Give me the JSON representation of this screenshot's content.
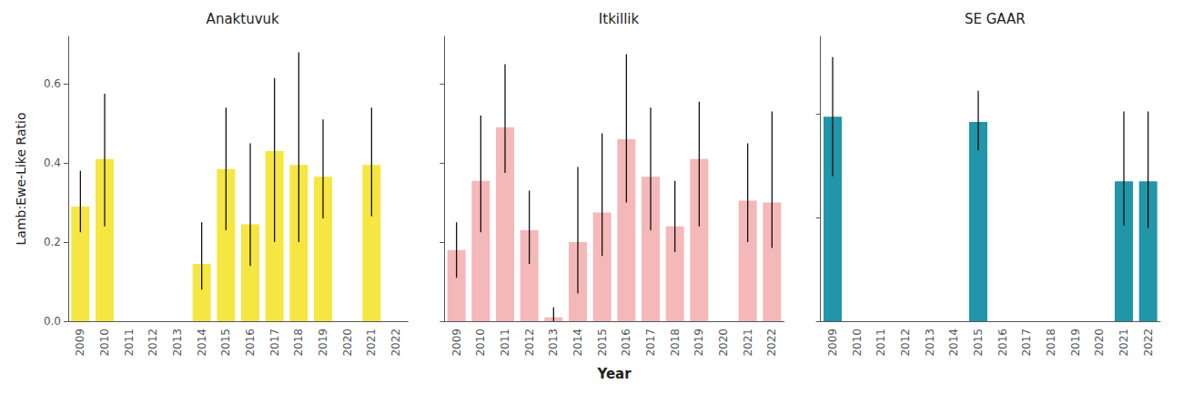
{
  "chart_data": [
    {
      "type": "bar",
      "title": "Anaktuvuk",
      "color": "#F5E642",
      "ylabel": "Lamb:Ewe-Like Ratio",
      "categories": [
        "2009",
        "2010",
        "2011",
        "2012",
        "2013",
        "2014",
        "2015",
        "2016",
        "2017",
        "2018",
        "2019",
        "2020",
        "2021",
        "2022"
      ],
      "values": [
        0.29,
        0.41,
        null,
        null,
        null,
        0.145,
        0.385,
        0.245,
        0.43,
        0.395,
        0.365,
        null,
        0.395,
        null
      ],
      "err_low": [
        0.065,
        0.17,
        null,
        null,
        null,
        0.065,
        0.155,
        0.105,
        0.23,
        0.195,
        0.105,
        null,
        0.13,
        null
      ],
      "err_high": [
        0.09,
        0.165,
        null,
        null,
        null,
        0.105,
        0.155,
        0.205,
        0.185,
        0.285,
        0.145,
        null,
        0.145,
        null
      ],
      "ylim": [
        0,
        0.72
      ],
      "yticks": [
        {
          "value": 0,
          "label": "0.0"
        },
        0.2,
        0.4,
        0.6
      ],
      "grid": false
    },
    {
      "type": "bar",
      "title": "Itkillik",
      "color": "#F4B8B8",
      "xlabel": "Year",
      "categories": [
        "2009",
        "2010",
        "2011",
        "2012",
        "2013",
        "2014",
        "2015",
        "2016",
        "2017",
        "2018",
        "2019",
        "2020",
        "2021",
        "2022"
      ],
      "values": [
        0.18,
        0.355,
        0.49,
        0.23,
        0.01,
        0.2,
        0.275,
        0.46,
        0.365,
        0.24,
        0.41,
        null,
        0.305,
        0.3
      ],
      "err_low": [
        0.07,
        0.13,
        0.115,
        0.085,
        0.01,
        0.13,
        0.11,
        0.16,
        0.135,
        0.065,
        0.17,
        null,
        0.105,
        0.115
      ],
      "err_high": [
        0.07,
        0.165,
        0.16,
        0.1,
        0.025,
        0.19,
        0.2,
        0.215,
        0.175,
        0.115,
        0.145,
        null,
        0.145,
        0.23
      ],
      "ylim": [
        0,
        0.72
      ],
      "yticks": [
        0,
        0.2,
        0.4,
        0.6
      ],
      "tick_labels": "x",
      "grid": false
    },
    {
      "type": "bar",
      "title": "SE GAAR",
      "color": "#2196A8",
      "categories": [
        "2009",
        "2010",
        "2011",
        "2012",
        "2013",
        "2014",
        "2015",
        "2016",
        "2017",
        "2018",
        "2019",
        "2020",
        "2021",
        "2022"
      ],
      "values": [
        0.395,
        null,
        null,
        null,
        null,
        null,
        0.385,
        null,
        null,
        null,
        null,
        null,
        0.27,
        0.27
      ],
      "err_low": [
        0.115,
        null,
        null,
        null,
        null,
        null,
        0.055,
        null,
        null,
        null,
        null,
        null,
        0.085,
        0.09
      ],
      "err_high": [
        0.115,
        null,
        null,
        null,
        null,
        null,
        0.06,
        null,
        null,
        null,
        null,
        null,
        0.135,
        0.135
      ],
      "ylim": [
        0,
        0.55
      ],
      "yticks": [
        0,
        0.2,
        0.4
      ],
      "tick_labels": "x",
      "grid": false
    }
  ]
}
